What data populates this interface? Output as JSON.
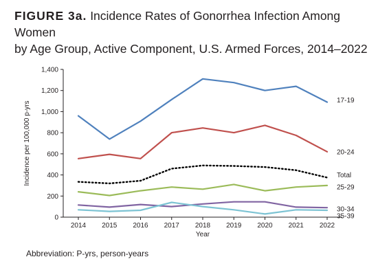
{
  "figure": {
    "label": "FIGURE 3a.",
    "title_line1": "Incidence Rates of Gonorrhea Infection Among Women",
    "title_line2": "by Age Group, Active Component, U.S. Armed Forces, 2014–2022"
  },
  "footnote": "Abbreviation: P-yrs, person-years",
  "chart_data": {
    "type": "line",
    "title": "Incidence Rates of Gonorrhea Infection Among Women by Age Group, Active Component, U.S. Armed Forces, 2014–2022",
    "xlabel": "Year",
    "ylabel": "Incidence per 100,000 p-yrs",
    "categories": [
      "2014",
      "2015",
      "2016",
      "2017",
      "2018",
      "2019",
      "2020",
      "2021",
      "2022"
    ],
    "ylim": [
      0,
      1400
    ],
    "yticks": [
      "0",
      "200",
      "400",
      "600",
      "800",
      "1,000",
      "1,200",
      "1,400"
    ],
    "yticks_values": [
      0,
      200,
      400,
      600,
      800,
      1000,
      1200,
      1400
    ],
    "grid": false,
    "legend": "direct labels at right end of lines",
    "series": [
      {
        "name": "17-19",
        "color": "#4f81bd",
        "dashed": false,
        "values": [
          960,
          740,
          910,
          1115,
          1310,
          1275,
          1200,
          1240,
          1090
        ]
      },
      {
        "name": "20-24",
        "color": "#c0504d",
        "dashed": false,
        "values": [
          555,
          595,
          555,
          800,
          845,
          800,
          870,
          775,
          620
        ]
      },
      {
        "name": "Total",
        "color": "#000000",
        "dashed": true,
        "values": [
          335,
          320,
          345,
          460,
          490,
          485,
          475,
          445,
          375
        ]
      },
      {
        "name": "25-29",
        "color": "#9bbb59",
        "dashed": false,
        "values": [
          240,
          205,
          250,
          285,
          265,
          310,
          250,
          285,
          300
        ]
      },
      {
        "name": "30-34",
        "color": "#8064a2",
        "dashed": false,
        "values": [
          115,
          95,
          120,
          100,
          125,
          145,
          145,
          95,
          90
        ]
      },
      {
        "name": "35-39",
        "color": "#7cc3d3",
        "dashed": false,
        "values": [
          70,
          55,
          65,
          140,
          100,
          70,
          30,
          70,
          65
        ]
      }
    ]
  }
}
